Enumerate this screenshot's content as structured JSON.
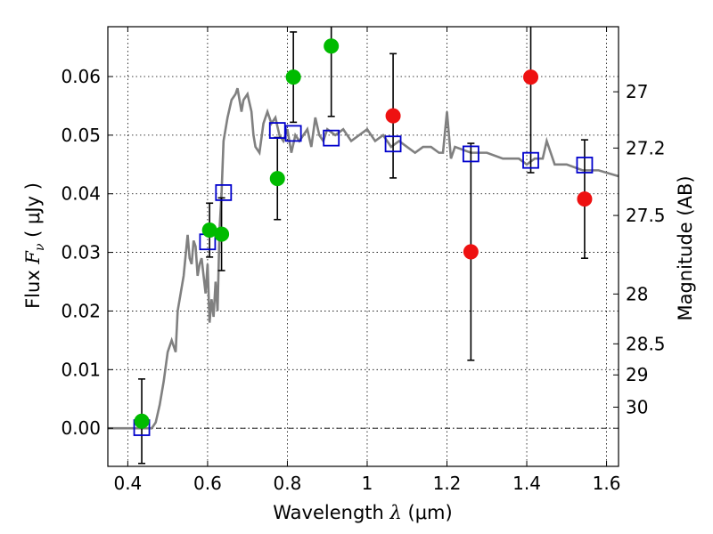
{
  "chart_data": {
    "type": "scatter",
    "title": "",
    "xlabel": {
      "prefix": "Wavelength  ",
      "symbol": "λ",
      "unit": " (μm)"
    },
    "ylabel": {
      "prefix": "Flux  ",
      "symbol": "F",
      "subscript": "ν",
      "unit": "  ( μJy )"
    },
    "ylabel_right": "Magnitude (AB)",
    "xlim": [
      0.35,
      1.63
    ],
    "ylim": [
      -0.0065,
      0.0685
    ],
    "x_ticks": [
      0.4,
      0.6,
      0.8,
      1.0,
      1.2,
      1.4,
      1.6
    ],
    "x_tick_labels": [
      "0.4",
      "0.6",
      "0.8",
      "1",
      "1.2",
      "1.4",
      "1.6"
    ],
    "y_ticks": [
      0.0,
      0.01,
      0.02,
      0.03,
      0.04,
      0.05,
      0.06
    ],
    "y_tick_labels": [
      "0.00",
      "0.01",
      "0.02",
      "0.03",
      "0.04",
      "0.05",
      "0.06"
    ],
    "right_ticks": [
      {
        "label": "27",
        "flux": 0.0574
      },
      {
        "label": "27.2",
        "flux": 0.0478
      },
      {
        "label": "27.5",
        "flux": 0.0363
      },
      {
        "label": "28",
        "flux": 0.0229
      },
      {
        "label": "28.5",
        "flux": 0.0144
      },
      {
        "label": "29",
        "flux": 0.0091
      },
      {
        "label": "30",
        "flux": 0.0036
      }
    ],
    "grid": true,
    "colors": {
      "model": "#808080",
      "green": "#00bb00",
      "red": "#ee1111",
      "model_box": "#0000cc",
      "errorbar": "#000000"
    },
    "model_spectrum": {
      "x": [
        0.35,
        0.44,
        0.46,
        0.47,
        0.48,
        0.49,
        0.5,
        0.51,
        0.52,
        0.525,
        0.53,
        0.54,
        0.55,
        0.555,
        0.56,
        0.565,
        0.57,
        0.575,
        0.58,
        0.585,
        0.59,
        0.595,
        0.6,
        0.605,
        0.61,
        0.615,
        0.62,
        0.625,
        0.63,
        0.635,
        0.64,
        0.65,
        0.66,
        0.67,
        0.675,
        0.68,
        0.685,
        0.69,
        0.7,
        0.71,
        0.715,
        0.72,
        0.73,
        0.74,
        0.75,
        0.76,
        0.77,
        0.78,
        0.79,
        0.8,
        0.81,
        0.82,
        0.83,
        0.84,
        0.85,
        0.86,
        0.87,
        0.88,
        0.89,
        0.9,
        0.92,
        0.94,
        0.96,
        0.98,
        1.0,
        1.02,
        1.04,
        1.06,
        1.08,
        1.1,
        1.12,
        1.14,
        1.16,
        1.18,
        1.19,
        1.2,
        1.21,
        1.22,
        1.26,
        1.3,
        1.34,
        1.38,
        1.4,
        1.42,
        1.44,
        1.45,
        1.46,
        1.47,
        1.48,
        1.5,
        1.54,
        1.58,
        1.63
      ],
      "y": [
        0.0,
        0.0,
        0.0,
        0.001,
        0.004,
        0.008,
        0.013,
        0.015,
        0.013,
        0.02,
        0.022,
        0.026,
        0.033,
        0.029,
        0.028,
        0.032,
        0.031,
        0.026,
        0.028,
        0.029,
        0.026,
        0.023,
        0.028,
        0.018,
        0.022,
        0.019,
        0.025,
        0.02,
        0.034,
        0.04,
        0.049,
        0.053,
        0.056,
        0.057,
        0.058,
        0.056,
        0.054,
        0.056,
        0.057,
        0.054,
        0.05,
        0.048,
        0.047,
        0.052,
        0.054,
        0.052,
        0.053,
        0.05,
        0.049,
        0.051,
        0.047,
        0.05,
        0.049,
        0.05,
        0.051,
        0.048,
        0.053,
        0.05,
        0.049,
        0.051,
        0.05,
        0.051,
        0.049,
        0.05,
        0.051,
        0.049,
        0.05,
        0.048,
        0.049,
        0.048,
        0.047,
        0.048,
        0.048,
        0.047,
        0.047,
        0.054,
        0.046,
        0.048,
        0.047,
        0.047,
        0.046,
        0.046,
        0.045,
        0.046,
        0.046,
        0.049,
        0.047,
        0.045,
        0.045,
        0.045,
        0.044,
        0.044,
        0.043
      ]
    },
    "series": [
      {
        "marker": "circle",
        "color": "green",
        "points": [
          {
            "x": 0.435,
            "y": 0.0012,
            "yerr": 0.0072
          },
          {
            "x": 0.605,
            "y": 0.0338,
            "yerr": 0.0046
          },
          {
            "x": 0.635,
            "y": 0.0331,
            "yerr": 0.0062
          },
          {
            "x": 0.775,
            "y": 0.0426,
            "yerr": 0.007
          },
          {
            "x": 0.815,
            "y": 0.0599,
            "yerr": 0.0077
          },
          {
            "x": 0.91,
            "y": 0.0652,
            "yerr": 0.012
          }
        ]
      },
      {
        "marker": "circle",
        "color": "red",
        "points": [
          {
            "x": 1.065,
            "y": 0.0533,
            "yerr": 0.0106
          },
          {
            "x": 1.26,
            "y": 0.0301,
            "yerr": 0.0185
          },
          {
            "x": 1.41,
            "y": 0.0599,
            "yerr": 0.0163
          },
          {
            "x": 1.545,
            "y": 0.0391,
            "yerr": 0.0101
          }
        ]
      },
      {
        "marker": "square",
        "color": "model_box",
        "points": [
          {
            "x": 0.435,
            "y": 0.0001
          },
          {
            "x": 0.6,
            "y": 0.0318
          },
          {
            "x": 0.64,
            "y": 0.0402
          },
          {
            "x": 0.775,
            "y": 0.0508
          },
          {
            "x": 0.815,
            "y": 0.0503
          },
          {
            "x": 0.91,
            "y": 0.0495
          },
          {
            "x": 1.065,
            "y": 0.0485
          },
          {
            "x": 1.26,
            "y": 0.0468
          },
          {
            "x": 1.41,
            "y": 0.0457
          },
          {
            "x": 1.545,
            "y": 0.0449
          }
        ]
      }
    ]
  }
}
